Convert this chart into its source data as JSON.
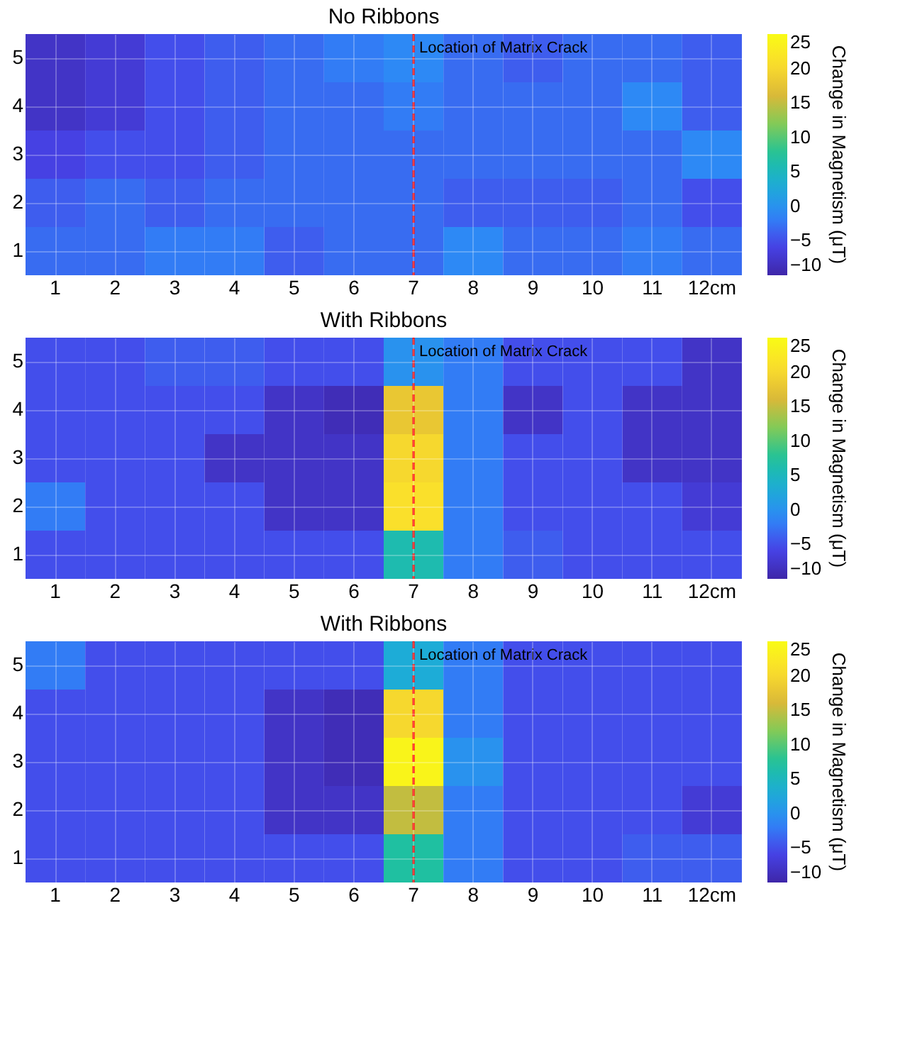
{
  "chart_data": [
    {
      "type": "heatmap",
      "title": "No Ribbons",
      "clabel": "Change in Magnetism (μT)",
      "categories": [
        "1",
        "2",
        "3",
        "4",
        "5",
        "6",
        "7",
        "8",
        "9",
        "10",
        "11",
        "12cm"
      ],
      "y_categories": [
        "5",
        "4",
        "3",
        "2",
        "1"
      ],
      "cells": [
        [
          -8,
          -7,
          -5,
          -4,
          -3,
          -2,
          -1,
          -3,
          -4,
          -3,
          -3,
          -4
        ],
        [
          -8,
          -7,
          -5,
          -4,
          -3,
          -3,
          -2,
          -3,
          -3,
          -3,
          -1,
          -4
        ],
        [
          -6,
          -5,
          -5,
          -4,
          -3,
          -3,
          -3,
          -3,
          -3,
          -3,
          -3,
          -1
        ],
        [
          -4,
          -3,
          -4,
          -3,
          -3,
          -3,
          -3,
          -4,
          -4,
          -4,
          -3,
          -5
        ],
        [
          -3,
          -3,
          -2,
          -2,
          -4,
          -3,
          -3,
          -1,
          -3,
          -3,
          -2,
          -3
        ]
      ],
      "clim": [
        -10,
        25
      ],
      "cticks": [
        -10,
        -5,
        0,
        5,
        10,
        15,
        20,
        25
      ],
      "grid": true,
      "ref_lines": [
        {
          "axis": "x",
          "value": "7",
          "label": "Location of Matrix Crack",
          "color": "#ff0000",
          "line_style": "dashed"
        }
      ]
    },
    {
      "type": "heatmap",
      "title": "With Ribbons",
      "clabel": "Change in Magnetism (μT)",
      "categories": [
        "1",
        "2",
        "3",
        "4",
        "5",
        "6",
        "7",
        "8",
        "9",
        "10",
        "11",
        "12cm"
      ],
      "y_categories": [
        "5",
        "4",
        "3",
        "2",
        "1"
      ],
      "cells": [
        [
          -5,
          -5,
          -4,
          -4,
          -5,
          -5,
          0,
          -2,
          -5,
          -5,
          -5,
          -8
        ],
        [
          -5,
          -5,
          -5,
          -5,
          -8,
          -9,
          18,
          -2,
          -8,
          -5,
          -8,
          -8
        ],
        [
          -5,
          -5,
          -5,
          -8,
          -8,
          -8,
          20,
          -2,
          -5,
          -5,
          -8,
          -8
        ],
        [
          -2,
          -5,
          -5,
          -5,
          -8,
          -8,
          21,
          -2,
          -5,
          -5,
          -5,
          -7
        ],
        [
          -5,
          -5,
          -5,
          -5,
          -5,
          -5,
          6,
          -2,
          -4,
          -5,
          -5,
          -5
        ]
      ],
      "clim": [
        -10,
        25
      ],
      "cticks": [
        -10,
        -5,
        0,
        5,
        10,
        15,
        20,
        25
      ],
      "grid": true,
      "ref_lines": [
        {
          "axis": "x",
          "value": "7",
          "label": "Location of Matrix Crack",
          "color": "#ff0000",
          "line_style": "dashed"
        }
      ]
    },
    {
      "type": "heatmap",
      "title": "With Ribbons",
      "clabel": "Change in Magnetism (μT)",
      "categories": [
        "1",
        "2",
        "3",
        "4",
        "5",
        "6",
        "7",
        "8",
        "9",
        "10",
        "11",
        "12cm"
      ],
      "y_categories": [
        "5",
        "4",
        "3",
        "2",
        "1"
      ],
      "cells": [
        [
          -2,
          -5,
          -5,
          -5,
          -5,
          -5,
          3,
          -2,
          -5,
          -5,
          -5,
          -5
        ],
        [
          -5,
          -5,
          -5,
          -5,
          -8,
          -9,
          20,
          -2,
          -5,
          -5,
          -5,
          -5
        ],
        [
          -5,
          -5,
          -5,
          -5,
          -8,
          -9,
          24,
          0,
          -5,
          -5,
          -5,
          -5
        ],
        [
          -5,
          -5,
          -5,
          -5,
          -8,
          -8,
          15,
          -2,
          -5,
          -5,
          -5,
          -7
        ],
        [
          -5,
          -5,
          -5,
          -5,
          -5,
          -5,
          7,
          -2,
          -5,
          -5,
          -4,
          -4
        ]
      ],
      "clim": [
        -10,
        25
      ],
      "cticks": [
        -10,
        -5,
        0,
        5,
        10,
        15,
        20,
        25
      ],
      "grid": true,
      "ref_lines": [
        {
          "axis": "x",
          "value": "7",
          "label": "Location of Matrix Crack",
          "color": "#ff0000",
          "line_style": "dashed"
        }
      ]
    }
  ]
}
